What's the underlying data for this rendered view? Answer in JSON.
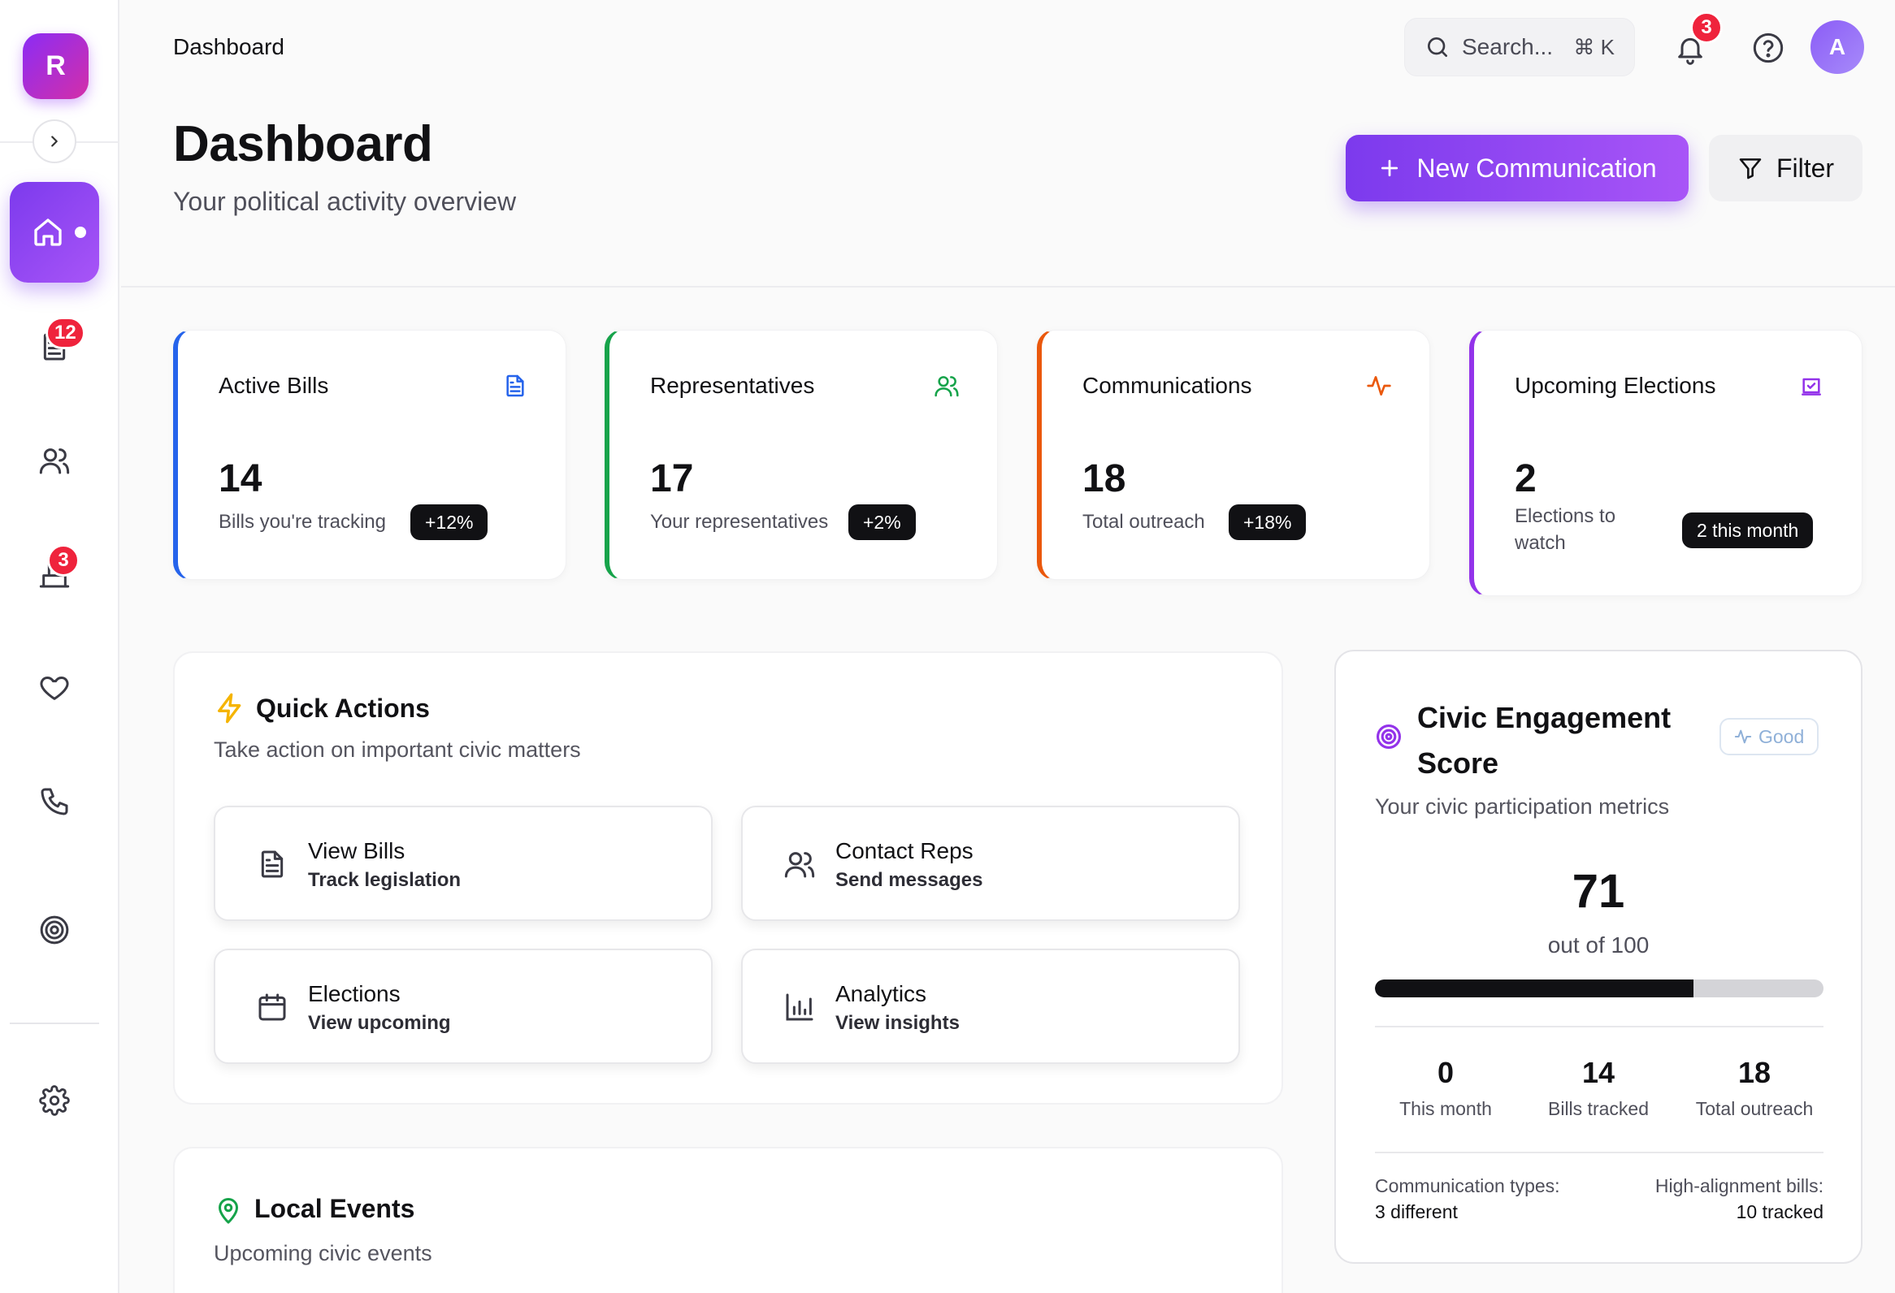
{
  "app": {
    "logo_letter": "R"
  },
  "sidebar": {
    "items": [
      {
        "name": "home",
        "active": true
      },
      {
        "name": "bills",
        "badge": "12"
      },
      {
        "name": "representatives"
      },
      {
        "name": "elections",
        "badge": "3"
      },
      {
        "name": "favorites"
      },
      {
        "name": "contact"
      },
      {
        "name": "engagement"
      },
      {
        "name": "settings"
      }
    ]
  },
  "topbar": {
    "breadcrumb": "Dashboard",
    "search": {
      "placeholder": "Search...",
      "shortcut": "⌘ K"
    },
    "notifications_count": "3",
    "avatar_letter": "A"
  },
  "header": {
    "title": "Dashboard",
    "subtitle": "Your political activity overview",
    "new_button_label": "New Communication",
    "filter_button_label": "Filter"
  },
  "stats": [
    {
      "title": "Active Bills",
      "value": "14",
      "caption": "Bills you're tracking",
      "pill": "+12%",
      "color": "#2563eb"
    },
    {
      "title": "Representatives",
      "value": "17",
      "caption": "Your representatives",
      "pill": "+2%",
      "color": "#16a34a"
    },
    {
      "title": "Communications",
      "value": "18",
      "caption": "Total outreach",
      "pill": "+18%",
      "color": "#ea580c"
    },
    {
      "title": "Upcoming Elections",
      "value": "2",
      "caption": "Elections to watch",
      "pill": "2 this month",
      "color": "#9333ea"
    }
  ],
  "quick_actions": {
    "title": "Quick Actions",
    "subtitle": "Take action on important civic matters",
    "items": [
      {
        "title": "View Bills",
        "sub": "Track legislation",
        "icon": "document-icon"
      },
      {
        "title": "Contact Reps",
        "sub": "Send messages",
        "icon": "users-icon"
      },
      {
        "title": "Elections",
        "sub": "View upcoming",
        "icon": "calendar-icon"
      },
      {
        "title": "Analytics",
        "sub": "View insights",
        "icon": "bar-chart-icon"
      }
    ]
  },
  "civic_score": {
    "title": "Civic Engagement Score",
    "badge": "Good",
    "subtitle": "Your civic participation metrics",
    "score": "71",
    "out_of": "out of 100",
    "progress": 0.71,
    "stats": [
      {
        "value": "0",
        "label": "This month"
      },
      {
        "value": "14",
        "label": "Bills tracked"
      },
      {
        "value": "18",
        "label": "Total outreach"
      }
    ],
    "footer_left_label": "Communication types:",
    "footer_left_value": "3 different",
    "footer_right_label": "High-alignment bills:",
    "footer_right_value": "10 tracked"
  },
  "local_events": {
    "title": "Local Events",
    "subtitle": "Upcoming civic events"
  }
}
